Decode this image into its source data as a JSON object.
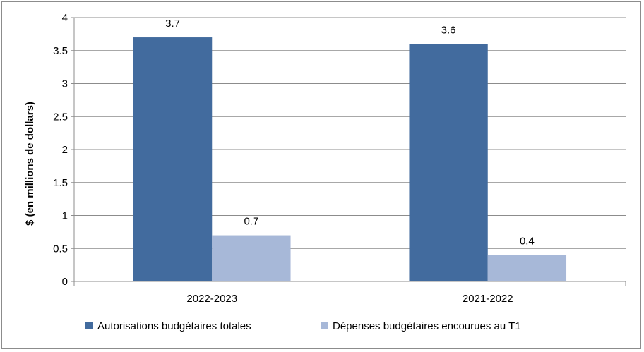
{
  "chart_data": {
    "type": "bar",
    "title": "",
    "xlabel": "",
    "ylabel": "$ (en millions de dollars)",
    "ylim": [
      0,
      4
    ],
    "yticks": [
      "0",
      "0.5",
      "1",
      "1.5",
      "2",
      "2.5",
      "3",
      "3.5",
      "4"
    ],
    "ytick_values": [
      0,
      0.5,
      1,
      1.5,
      2,
      2.5,
      3,
      3.5,
      4
    ],
    "grid": true,
    "legend_position": "bottom",
    "categories": [
      "2022-2023",
      "2021-2022"
    ],
    "series": [
      {
        "name": "Autorisations budgétaires totales",
        "color": "#426B9E",
        "values": [
          3.7,
          3.6
        ],
        "labels": [
          "3.7",
          "3.6"
        ]
      },
      {
        "name": "Dépenses budgétaires encourues au T1",
        "color": "#A7B8D8",
        "values": [
          0.7,
          0.4
        ],
        "labels": [
          "0.7",
          "0.4"
        ]
      }
    ]
  }
}
